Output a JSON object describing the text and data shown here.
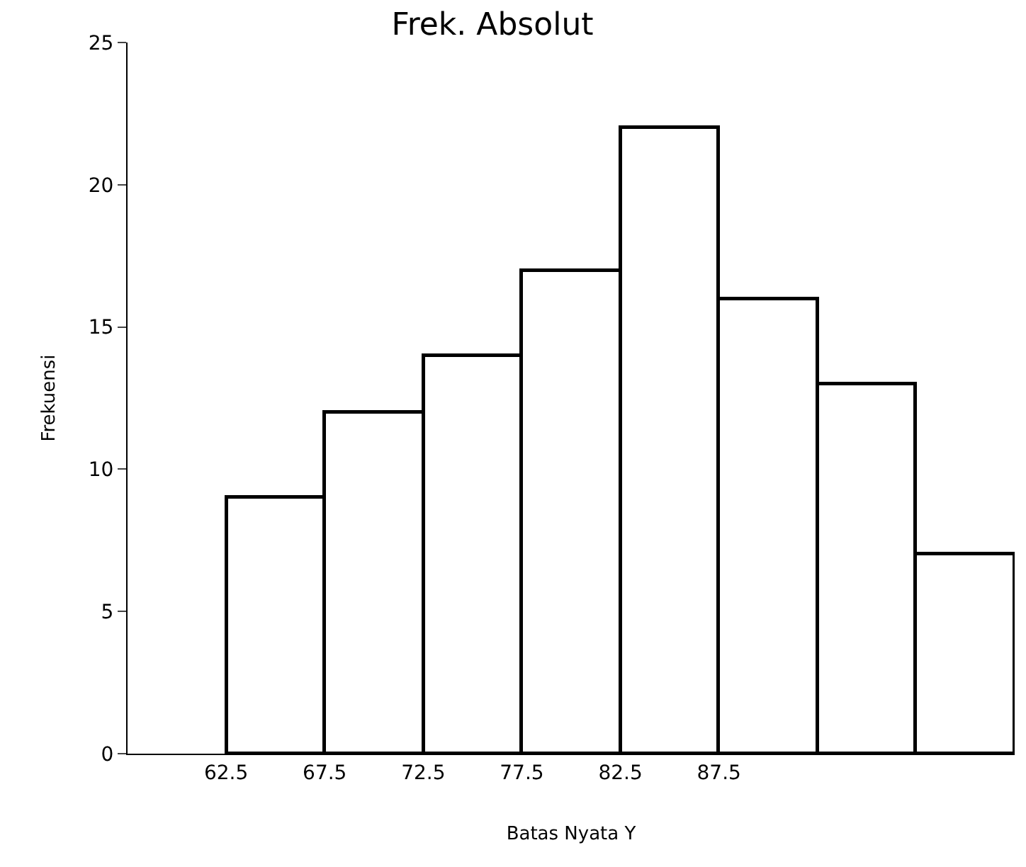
{
  "chart_data": {
    "type": "histogram",
    "title": "Frek. Absolut",
    "xlabel": "Batas Nyata Y",
    "ylabel": "Frekuensi",
    "bins": [
      62.5,
      67.5,
      72.5,
      77.5,
      82.5,
      87.5,
      92.5,
      97.5,
      102.5
    ],
    "values": [
      9,
      12,
      14,
      17,
      22,
      16,
      13,
      7
    ],
    "color": "#ffffff",
    "xlim": [
      57.5,
      102.5
    ],
    "xticks": [
      62.5,
      67.5,
      72.5,
      77.5,
      82.5,
      87.5
    ],
    "ylim": [
      0,
      25
    ],
    "yticks": [
      0,
      5,
      10,
      15,
      20,
      25
    ]
  }
}
